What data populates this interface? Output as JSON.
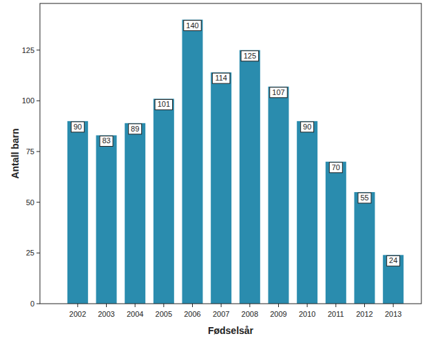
{
  "chart_data": {
    "type": "bar",
    "x_label": "Fødselsår",
    "y_label": "Antall barn",
    "categories": [
      "2002",
      "2003",
      "2004",
      "2005",
      "2006",
      "2007",
      "2008",
      "2009",
      "2010",
      "2011",
      "2012",
      "2013"
    ],
    "values": [
      90,
      83,
      89,
      101,
      140,
      114,
      125,
      107,
      90,
      70,
      55,
      24
    ],
    "color": "#2a8cae",
    "ylim": [
      0,
      148
    ],
    "yticks": [
      0,
      25,
      50,
      75,
      100,
      125
    ],
    "grid": false,
    "data_labels": true
  }
}
